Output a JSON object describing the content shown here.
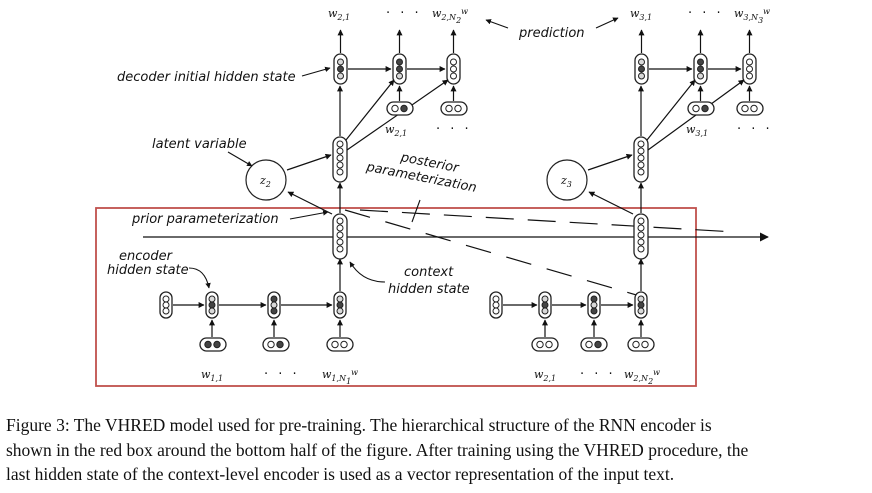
{
  "labels": {
    "decoder_initial_hidden_state": "decoder initial hidden state",
    "latent_variable": "latent variable",
    "prior_parameterization": "prior parameterization",
    "encoder_line1": "encoder",
    "encoder_line2": "hidden state",
    "context_line1": "context",
    "context_line2": "hidden state",
    "posterior_line1": "posterior",
    "posterior_line2": "parameterization",
    "prediction": "prediction"
  },
  "tokens": {
    "w21_top": "w",
    "w21_top_sub": "2,1",
    "w2n_top": "w",
    "w2n_top_sub": "2,N",
    "w2n_top_sup": "w",
    "w2n_top_sub2": "2",
    "w21_mid": "w",
    "w21_mid_sub": "2,1",
    "w31_top": "w",
    "w31_top_sub": "3,1",
    "w3n_top": "w",
    "w3n_top_sub": "3,N",
    "w3n_top_sup": "w",
    "w3n_top_sub2": "3",
    "w31_mid": "w",
    "w31_mid_sub": "3,1",
    "w11_bot": "w",
    "w11_bot_sub": "1,1",
    "w1n_bot": "w",
    "w1n_bot_sub": "1,N",
    "w1n_bot_sup": "w",
    "w1n_bot_sub2": "1",
    "w21_bot": "w",
    "w21_bot_sub": "2,1",
    "w2n_bot": "w",
    "w2n_bot_sub": "2,N",
    "w2n_bot_sup": "w",
    "w2n_bot_sub2": "2",
    "ellipsis": "· · ·"
  },
  "latents": {
    "z2": "z",
    "z2_sub": "2",
    "z3": "z",
    "z3_sub": "3"
  },
  "caption": {
    "line1": "Figure 3: The VHRED model used for pre-training. The hierarchical structure of the RNN encoder is",
    "line2": "shown in the red box around the bottom half of the figure. After training using the VHRED procedure, the",
    "line3": "last hidden state of the context-level encoder is used as a vector representation of the input text."
  },
  "colors": {
    "red_box": "#c0504d",
    "dark_cell": "#444444",
    "light_cell": "#d9d9d9",
    "ink": "#111111"
  }
}
